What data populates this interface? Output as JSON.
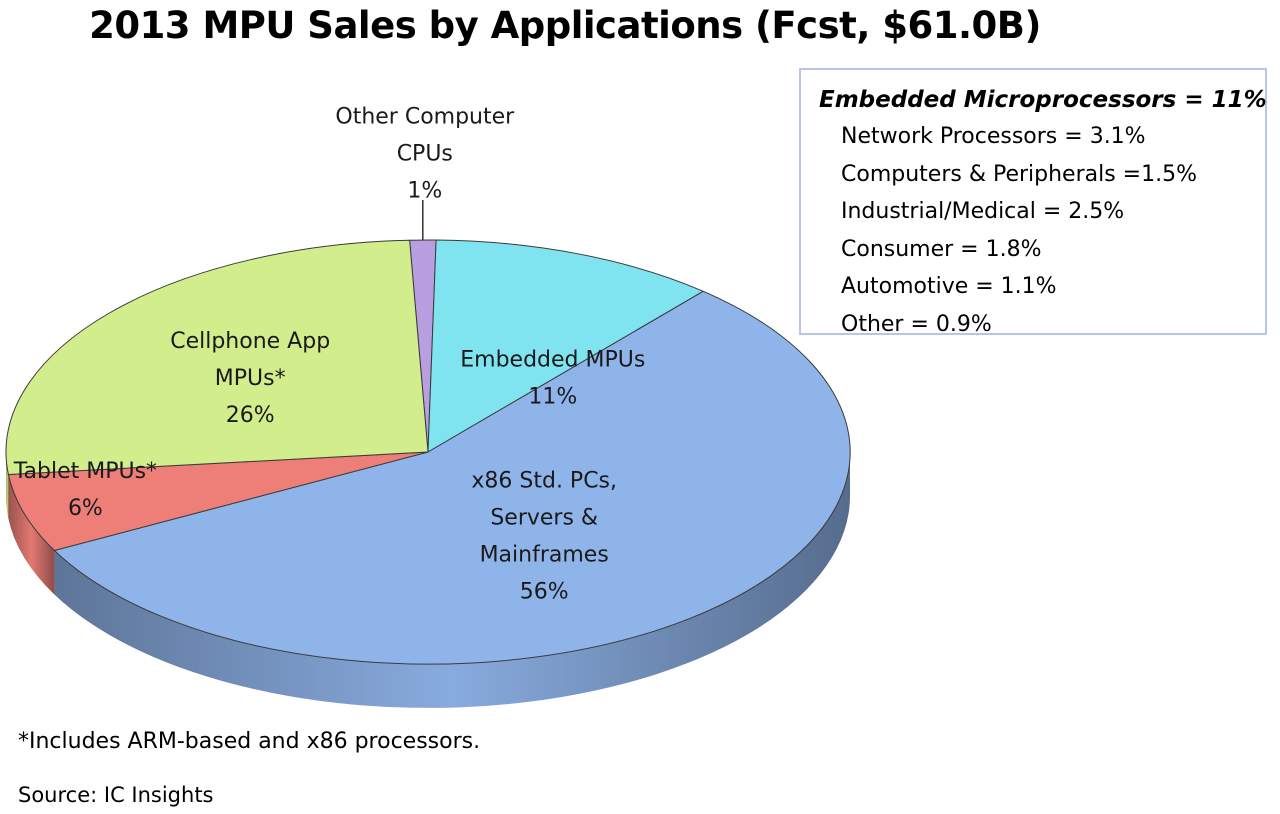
{
  "chart_data": {
    "type": "pie",
    "title": "2013 MPU Sales by Applications (Fcst, $61.0B)",
    "slices": [
      {
        "label": [
          "Other Computer",
          "CPUs"
        ],
        "value": 1,
        "value_label": "1%",
        "color": "#b79fe0"
      },
      {
        "label": [
          "Embedded MPUs"
        ],
        "value": 11,
        "value_label": "11%",
        "color": "#7fe3f0"
      },
      {
        "label": [
          "x86 Std. PCs,",
          "Servers &",
          "Mainframes"
        ],
        "value": 56,
        "value_label": "56%",
        "color": "#8fb4ea"
      },
      {
        "label": [
          "Tablet MPUs*"
        ],
        "value": 6,
        "value_label": "6%",
        "color": "#ee7f78"
      },
      {
        "label": [
          "Cellphone App",
          "MPUs*"
        ],
        "value": 26,
        "value_label": "26%",
        "color": "#d2ee8c"
      }
    ]
  },
  "embedded_breakdown": {
    "title": "Embedded Microprocessors = 11%",
    "items": [
      "Network Processors = 3.1%",
      "Computers & Peripherals =1.5%",
      "Industrial/Medical = 2.5%",
      "Consumer = 1.8%",
      "Automotive = 1.1%",
      "Other = 0.9%"
    ]
  },
  "footnote": "*Includes ARM-based and x86 processors.",
  "source": "Source:  IC Insights"
}
